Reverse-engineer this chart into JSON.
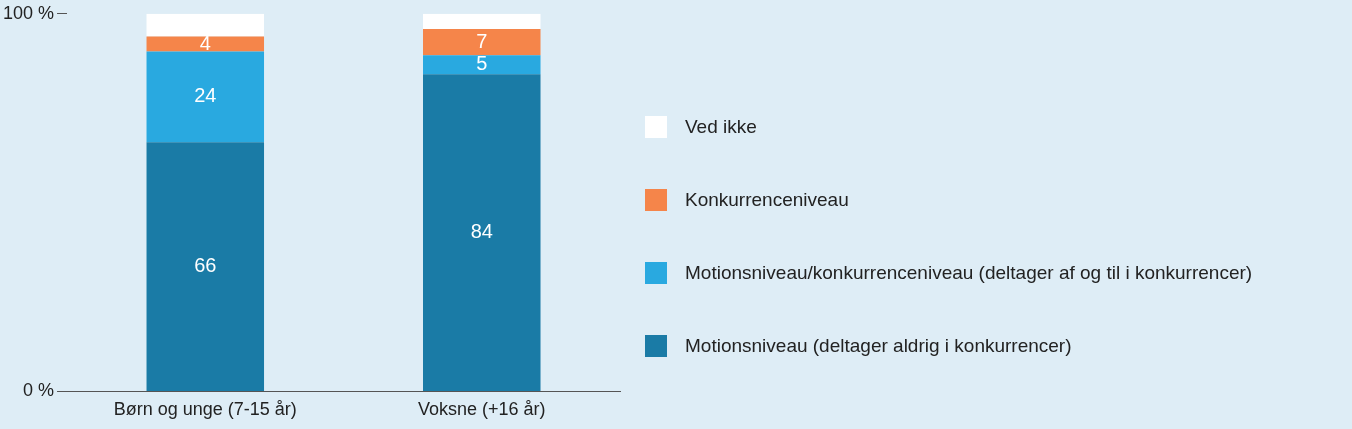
{
  "chart_data": {
    "type": "bar",
    "stacked": true,
    "categories": [
      "Børn og unge (7-15 år)",
      "Voksne (+16 år)"
    ],
    "series": [
      {
        "name": "Motionsniveau (deltager aldrig i konkurrencer)",
        "color": "#1a7ba6",
        "values": [
          66,
          84
        ],
        "value_labels": [
          "66",
          "84"
        ]
      },
      {
        "name": "Motionsniveau/konkurrenceniveau (deltager af og til i konkurrencer)",
        "color": "#29a9e0",
        "values": [
          24,
          5
        ],
        "value_labels": [
          "24",
          "5"
        ]
      },
      {
        "name": "Konkurrenceniveau",
        "color": "#f5854a",
        "values": [
          4,
          7
        ],
        "value_labels": [
          "4",
          "7"
        ]
      },
      {
        "name": "Ved ikke",
        "color": "#ffffff",
        "values": [
          6,
          4
        ],
        "value_labels": [
          null,
          null
        ]
      }
    ],
    "ylim": [
      0,
      100
    ],
    "yticks": [
      {
        "value": 0,
        "label": "0 %"
      },
      {
        "value": 100,
        "label": "100 %"
      }
    ],
    "grid": false,
    "legend": "right"
  }
}
